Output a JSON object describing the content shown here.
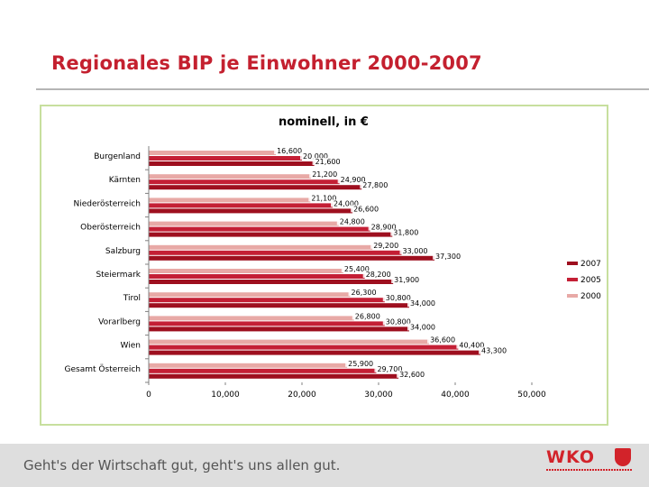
{
  "slide": {
    "title": "Regionales BIP je Einwohner 2000-2007",
    "slogan": "Geht's der Wirtschaft gut, geht's uns allen gut.",
    "logo": "WKO"
  },
  "colors": {
    "title": "#c4202f",
    "series_2007": "#9e0f1f",
    "series_2005": "#c41f35",
    "series_2000": "#e8a9a6",
    "frame": "#c7df9e",
    "footer": "#dedede"
  },
  "chart_data": {
    "type": "bar",
    "orientation": "horizontal",
    "title": "nominell, in €",
    "categories": [
      "Burgenland",
      "Kärnten",
      "Niederösterreich",
      "Oberösterreich",
      "Salzburg",
      "Steiermark",
      "Tirol",
      "Vorarlberg",
      "Wien",
      "Gesamt Österreich"
    ],
    "series": [
      {
        "name": "2000",
        "values": [
          16600,
          21200,
          21100,
          24800,
          29200,
          25400,
          26300,
          26800,
          36600,
          25900
        ],
        "labels": [
          "16,600",
          "21,200",
          "21,100",
          "24,800",
          "29,200",
          "25,400",
          "26,300",
          "26,800",
          "36,600",
          "25,900"
        ]
      },
      {
        "name": "2005",
        "values": [
          20000,
          24900,
          24000,
          28900,
          33000,
          28200,
          30800,
          30800,
          40400,
          29700
        ],
        "labels": [
          "20,000",
          "24,900",
          "24,000",
          "28,900",
          "33,000",
          "28,200",
          "30,800",
          "30,800",
          "40,400",
          "29,700"
        ]
      },
      {
        "name": "2007",
        "values": [
          21600,
          27800,
          26600,
          31800,
          37300,
          31900,
          34000,
          34000,
          43300,
          32600
        ],
        "labels": [
          "21,600",
          "27,800",
          "26,600",
          "31,800",
          "37,300",
          "31,900",
          "34,000",
          "34,000",
          "43,300",
          "32,600"
        ]
      }
    ],
    "xlim": [
      0,
      50000
    ],
    "xticks": [
      0,
      10000,
      20000,
      30000,
      40000,
      50000
    ],
    "xtick_labels": [
      "0",
      "10,000",
      "20,000",
      "30,000",
      "40,000",
      "50,000"
    ],
    "legend_order": [
      "2007",
      "2005",
      "2000"
    ],
    "legend": "right",
    "grid": false
  }
}
